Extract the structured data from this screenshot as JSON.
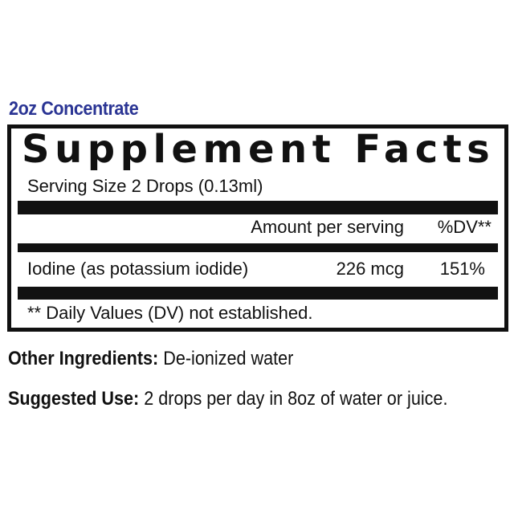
{
  "subtitle": "2oz Concentrate",
  "panel": {
    "title": "Supplement Facts",
    "serving_size": "Serving Size 2 Drops (0.13ml)",
    "header_amount": "Amount per serving",
    "header_dv": "%DV**",
    "rows": [
      {
        "name": "Iodine (as potassium iodide)",
        "amount": "226 mcg",
        "dv": "151%"
      }
    ],
    "footnote": "** Daily Values (DV) not established."
  },
  "other_ingredients": {
    "label": "Other Ingredients:",
    "value": "De-ionized water"
  },
  "suggested_use": {
    "label": "Suggested Use:",
    "value": " 2  drops per day in 8oz of water or juice."
  }
}
